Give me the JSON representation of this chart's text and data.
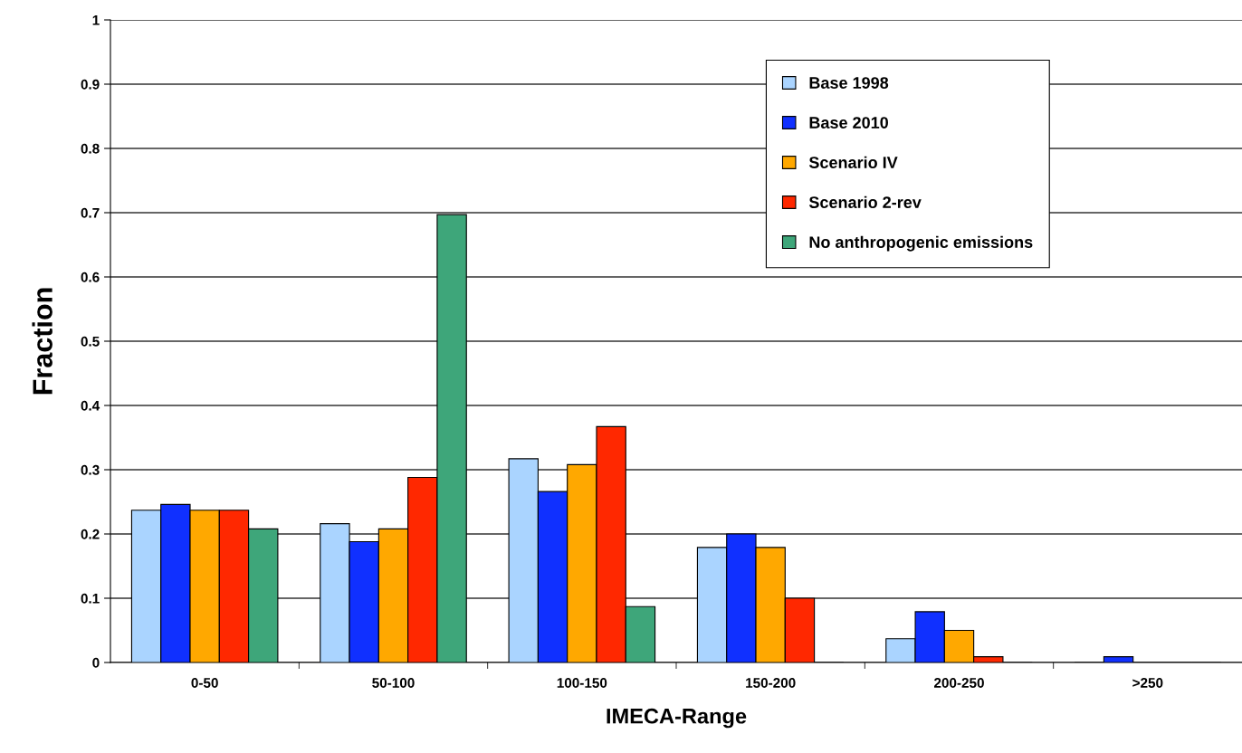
{
  "chart_data": {
    "type": "bar",
    "xlabel": "IMECA-Range",
    "ylabel": "Fraction",
    "categories": [
      "0-50",
      "50-100",
      "100-150",
      "150-200",
      "200-250",
      ">250"
    ],
    "series": [
      {
        "name": "Base 1998",
        "color": "#aad4ff",
        "values": [
          0.237,
          0.216,
          0.317,
          0.179,
          0.037,
          0
        ]
      },
      {
        "name": "Base 2010",
        "color": "#1030ff",
        "values": [
          0.246,
          0.188,
          0.266,
          0.2,
          0.079,
          0.009
        ]
      },
      {
        "name": "Scenario IV",
        "color": "#ffa800",
        "values": [
          0.237,
          0.208,
          0.308,
          0.179,
          0.05,
          0
        ]
      },
      {
        "name": "Scenario 2-rev",
        "color": "#ff2800",
        "values": [
          0.237,
          0.288,
          0.367,
          0.1,
          0.009,
          0
        ]
      },
      {
        "name": "No anthropogenic emissions",
        "color": "#3ea67a",
        "values": [
          0.208,
          0.697,
          0.087,
          0,
          0,
          0
        ]
      }
    ],
    "ylim": [
      0,
      1
    ],
    "yticks": [
      0,
      0.1,
      0.2,
      0.3,
      0.4,
      0.5,
      0.6,
      0.7,
      0.8,
      0.9,
      1
    ],
    "grid": "y",
    "legend": "top right"
  }
}
